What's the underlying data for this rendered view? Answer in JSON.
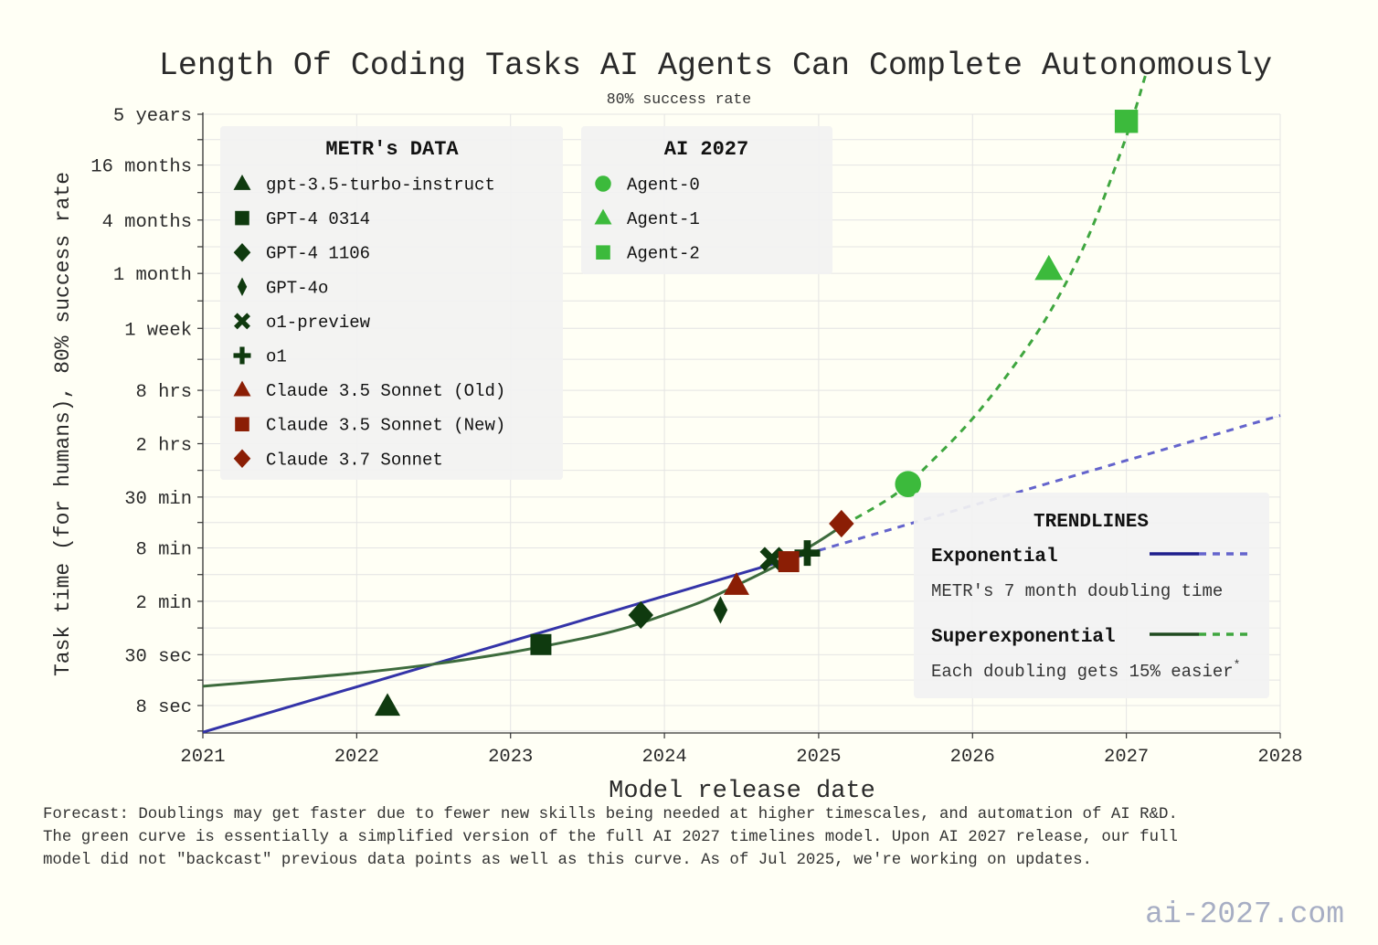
{
  "chart_data": {
    "type": "scatter",
    "title": "Length Of Coding Tasks AI Agents Can Complete Autonomously",
    "subtitle": "80% success rate",
    "xlabel": "Model release date",
    "ylabel": "Task time (for humans), 80% success rate",
    "x_axis": {
      "type": "date",
      "range": [
        "2021-01-01",
        "2028-01-01"
      ],
      "ticks": [
        "2021",
        "2022",
        "2023",
        "2024",
        "2025",
        "2026",
        "2027",
        "2028"
      ]
    },
    "y_axis": {
      "scale": "log",
      "unit": "minutes",
      "range_minutes": [
        4,
        3000000
      ],
      "ticks": [
        {
          "label": "8 sec",
          "minutes": 0.1333
        },
        {
          "label": "30 sec",
          "minutes": 0.5
        },
        {
          "label": "2 min",
          "minutes": 2
        },
        {
          "label": "8 min",
          "minutes": 8
        },
        {
          "label": "30 min",
          "minutes": 30
        },
        {
          "label": "2 hrs",
          "minutes": 120
        },
        {
          "label": "8 hrs",
          "minutes": 480
        },
        {
          "label": "1 week",
          "minutes": 2400
        },
        {
          "label": "1 month",
          "minutes": 10000
        },
        {
          "label": "4 months",
          "minutes": 40000
        },
        {
          "label": "16 months",
          "minutes": 167000
        },
        {
          "label": "5 years",
          "minutes": 625000
        }
      ]
    },
    "grid": true,
    "legend_groups": [
      {
        "title": "METR's DATA",
        "placement": "top-left",
        "series": [
          {
            "name": "gpt-3.5-turbo-instruct",
            "marker": "triangle",
            "color": "#0f3a0f",
            "points": [
              {
                "x": "2022-03-15",
                "y": 0.13
              }
            ]
          },
          {
            "name": "GPT-4 0314",
            "marker": "square",
            "color": "#0f3a0f",
            "points": [
              {
                "x": "2023-03-14",
                "y": 0.65
              }
            ]
          },
          {
            "name": "GPT-4 1106",
            "marker": "diamond",
            "color": "#0f3a0f",
            "points": [
              {
                "x": "2023-11-06",
                "y": 1.4
              }
            ]
          },
          {
            "name": "GPT-4o",
            "marker": "thin-diamond",
            "color": "#0f3a0f",
            "points": [
              {
                "x": "2024-05-13",
                "y": 1.6
              }
            ]
          },
          {
            "name": "o1-preview",
            "marker": "x",
            "color": "#0f3a0f",
            "points": [
              {
                "x": "2024-09-12",
                "y": 6
              }
            ]
          },
          {
            "name": "o1",
            "marker": "plus",
            "color": "#0f3a0f",
            "points": [
              {
                "x": "2024-12-05",
                "y": 7
              }
            ]
          },
          {
            "name": "Claude 3.5 Sonnet (Old)",
            "marker": "triangle",
            "color": "#8b1e05",
            "points": [
              {
                "x": "2024-06-20",
                "y": 3
              }
            ]
          },
          {
            "name": "Claude 3.5 Sonnet (New)",
            "marker": "square",
            "color": "#8b1e05",
            "points": [
              {
                "x": "2024-10-22",
                "y": 5.6
              }
            ]
          },
          {
            "name": "Claude 3.7 Sonnet",
            "marker": "diamond",
            "color": "#8b1e05",
            "points": [
              {
                "x": "2025-02-24",
                "y": 15
              }
            ]
          }
        ]
      },
      {
        "title": "AI 2027",
        "placement": "top-center",
        "series": [
          {
            "name": "Agent-0",
            "marker": "circle",
            "color": "#3cba3c",
            "points": [
              {
                "x": "2025-08-01",
                "y": 42
              }
            ]
          },
          {
            "name": "Agent-1",
            "marker": "triangle",
            "color": "#3cba3c",
            "points": [
              {
                "x": "2026-07-01",
                "y": 11000
              }
            ]
          },
          {
            "name": "Agent-2",
            "marker": "square",
            "color": "#3cba3c",
            "points": [
              {
                "x": "2027-01-01",
                "y": 520000
              }
            ]
          }
        ]
      }
    ],
    "trendlines_legend": {
      "title": "TRENDLINES",
      "placement": "center-right",
      "items": [
        {
          "name": "Exponential",
          "note": "METR's 7 month doubling time",
          "color": "#2b2b9a",
          "dash_color": "#6464cc"
        },
        {
          "name": "Superexponential",
          "note": "Each doubling gets 15% easier",
          "note_mark": "*",
          "color": "#3d6b3d",
          "dash_color": "#3fa63f"
        }
      ]
    },
    "trendlines": {
      "exponential": {
        "solid": [
          {
            "x": "2021-01-01",
            "y": 0.0667
          },
          {
            "x": "2025-01-01",
            "y": 7.5
          }
        ],
        "dashed": [
          {
            "x": "2025-01-01",
            "y": 7.5
          },
          {
            "x": "2028-01-01",
            "y": 250
          }
        ]
      },
      "superexponential": {
        "solid": [
          {
            "x": "2021-01-01",
            "y": 0.22
          },
          {
            "x": "2021-07-01",
            "y": 0.26
          },
          {
            "x": "2022-01-01",
            "y": 0.31
          },
          {
            "x": "2022-07-01",
            "y": 0.39
          },
          {
            "x": "2023-01-01",
            "y": 0.53
          },
          {
            "x": "2023-07-01",
            "y": 0.78
          },
          {
            "x": "2023-10-01",
            "y": 1.0
          },
          {
            "x": "2024-01-01",
            "y": 1.4
          },
          {
            "x": "2024-04-01",
            "y": 2.0
          },
          {
            "x": "2024-07-01",
            "y": 3.2
          },
          {
            "x": "2024-10-01",
            "y": 5.3
          },
          {
            "x": "2025-01-01",
            "y": 9.5
          },
          {
            "x": "2025-03-01",
            "y": 14.5
          }
        ],
        "dashed": [
          {
            "x": "2025-03-01",
            "y": 14.5
          },
          {
            "x": "2025-07-01",
            "y": 32
          },
          {
            "x": "2025-10-01",
            "y": 80
          },
          {
            "x": "2026-01-01",
            "y": 230
          },
          {
            "x": "2026-04-01",
            "y": 800
          },
          {
            "x": "2026-07-01",
            "y": 3500
          },
          {
            "x": "2026-10-01",
            "y": 25000
          },
          {
            "x": "2027-01-01",
            "y": 350000
          },
          {
            "x": "2027-02-15",
            "y": 1700000
          }
        ]
      }
    }
  },
  "footnote": "Forecast: Doublings may get faster due to fewer new skills being needed at higher timescales, and automation of AI R&D.\nThe green curve is essentially a simplified version of the full AI 2027 timelines model. Upon AI 2027 release, our full\nmodel did not \"backcast\" previous data points as well as this curve. As of Jul 2025, we're working on updates.",
  "watermark": "ai-2027.com"
}
